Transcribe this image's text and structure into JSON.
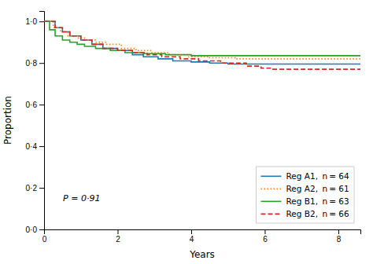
{
  "chart_data": {
    "type": "line",
    "xlabel": "Years",
    "ylabel": "Proportion",
    "annotation": "P = 0·91",
    "legend": "lower right",
    "xlim": [
      0,
      8.6
    ],
    "ylim": [
      0,
      1.05
    ],
    "xticks": [
      0,
      2,
      4,
      6,
      8
    ],
    "yticks": [
      {
        "value": 0.0,
        "label": "0·0"
      },
      {
        "value": 0.2,
        "label": "0·2"
      },
      {
        "value": 0.4,
        "label": "0·4"
      },
      {
        "value": 0.6,
        "label": "0·6"
      },
      {
        "value": 0.8,
        "label": "0·8"
      },
      {
        "value": 1.0,
        "label": "1·0"
      }
    ],
    "series": [
      {
        "name": "Reg A1,  n = 64",
        "line_style": "solid",
        "x": [
          0,
          0.3,
          0.3,
          0.5,
          0.5,
          0.7,
          0.7,
          1.0,
          1.0,
          1.3,
          1.3,
          1.6,
          1.6,
          2.0,
          2.0,
          2.4,
          2.4,
          2.7,
          2.7,
          3.1,
          3.1,
          3.5,
          3.5,
          4.0,
          4.0,
          4.5,
          4.5,
          5.0,
          5.0,
          8.6
        ],
        "values": [
          1.0,
          1.0,
          0.97,
          0.97,
          0.95,
          0.95,
          0.93,
          0.93,
          0.91,
          0.91,
          0.89,
          0.89,
          0.87,
          0.87,
          0.86,
          0.86,
          0.84,
          0.84,
          0.83,
          0.83,
          0.82,
          0.82,
          0.81,
          0.81,
          0.805,
          0.805,
          0.8,
          0.8,
          0.795,
          0.795
        ]
      },
      {
        "name": "Reg A2,  n = 61",
        "line_style": "dotted",
        "x": [
          0,
          0.25,
          0.25,
          0.45,
          0.45,
          0.65,
          0.65,
          0.9,
          0.9,
          1.1,
          1.1,
          1.4,
          1.4,
          1.7,
          1.7,
          2.1,
          2.1,
          2.5,
          2.5,
          2.9,
          2.9,
          3.4,
          3.4,
          3.9,
          3.9,
          4.5,
          4.5,
          5.2,
          5.2,
          8.6
        ],
        "values": [
          1.0,
          1.0,
          0.97,
          0.97,
          0.95,
          0.95,
          0.93,
          0.93,
          0.92,
          0.92,
          0.91,
          0.91,
          0.9,
          0.9,
          0.89,
          0.89,
          0.87,
          0.87,
          0.86,
          0.86,
          0.85,
          0.85,
          0.84,
          0.84,
          0.83,
          0.83,
          0.825,
          0.825,
          0.82,
          0.82
        ]
      },
      {
        "name": "Reg B1,  n = 63",
        "line_style": "solid",
        "x": [
          0,
          0.15,
          0.15,
          0.3,
          0.3,
          0.5,
          0.5,
          0.7,
          0.7,
          0.9,
          0.9,
          1.1,
          1.1,
          1.4,
          1.4,
          1.8,
          1.8,
          2.2,
          2.2,
          2.7,
          2.7,
          3.3,
          3.3,
          4.0,
          4.0,
          8.6
        ],
        "values": [
          1.0,
          1.0,
          0.96,
          0.96,
          0.93,
          0.93,
          0.91,
          0.91,
          0.9,
          0.9,
          0.89,
          0.89,
          0.88,
          0.88,
          0.87,
          0.87,
          0.86,
          0.86,
          0.85,
          0.85,
          0.845,
          0.845,
          0.84,
          0.84,
          0.835,
          0.835
        ]
      },
      {
        "name": "Reg B2,  n = 66",
        "line_style": "dashed",
        "x": [
          0,
          0.3,
          0.3,
          0.5,
          0.5,
          0.7,
          0.7,
          1.0,
          1.0,
          1.3,
          1.3,
          1.6,
          1.6,
          2.0,
          2.0,
          2.4,
          2.4,
          2.8,
          2.8,
          3.2,
          3.2,
          3.7,
          3.7,
          4.2,
          4.2,
          4.8,
          4.8,
          5.5,
          5.5,
          5.9,
          5.9,
          6.2,
          6.2,
          8.6
        ],
        "values": [
          1.0,
          1.0,
          0.97,
          0.97,
          0.95,
          0.95,
          0.93,
          0.93,
          0.91,
          0.91,
          0.89,
          0.89,
          0.87,
          0.87,
          0.86,
          0.86,
          0.85,
          0.85,
          0.84,
          0.84,
          0.83,
          0.83,
          0.82,
          0.82,
          0.81,
          0.81,
          0.8,
          0.8,
          0.785,
          0.785,
          0.775,
          0.775,
          0.77,
          0.77
        ]
      }
    ]
  }
}
